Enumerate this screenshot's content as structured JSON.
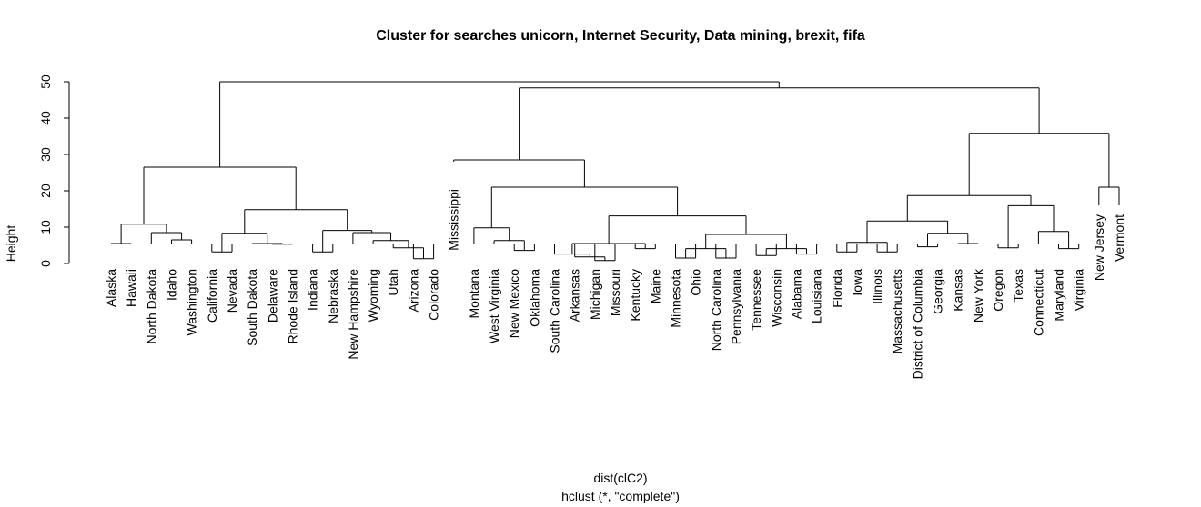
{
  "chart_data": {
    "type": "dendrogram",
    "title": "Cluster for searches unicorn, Internet Security, Data mining, brexit, fifa",
    "ylabel": "Height",
    "xlabel": "dist(clC2)",
    "sublabel": "hclust (*, \"complete\")",
    "ylim": [
      0,
      50
    ],
    "yticks": [
      "0",
      "10",
      "20",
      "30",
      "40",
      "50"
    ],
    "leaves": [
      "Alaska",
      "Hawaii",
      "North Dakota",
      "Idaho",
      "Washington",
      "California",
      "Nevada",
      "South Dakota",
      "Delaware",
      "Rhode Island",
      "Indiana",
      "Nebraska",
      "New Hampshire",
      "Wyoming",
      "Utah",
      "Arizona",
      "Colorado",
      "Mississippi",
      "Montana",
      "West Virginia",
      "New Mexico",
      "Oklahoma",
      "South Carolina",
      "Arkansas",
      "Michigan",
      "Missouri",
      "Kentucky",
      "Maine",
      "Minnesota",
      "Ohio",
      "North Carolina",
      "Pennsylvania",
      "Tennessee",
      "Wisconsin",
      "Alabama",
      "Louisiana",
      "Florida",
      "Iowa",
      "Illinois",
      "Massachusetts",
      "District of Columbia",
      "Georgia",
      "Kansas",
      "New York",
      "Oregon",
      "Texas",
      "Connecticut",
      "Maryland",
      "Virginia",
      "New Jersey",
      "Vermont"
    ],
    "merges": [
      [
        "Alaska",
        "Hawaii",
        5.5
      ],
      [
        "Idaho",
        "Washington",
        6.5
      ],
      [
        "North Dakota",
        2,
        8.5
      ],
      [
        1,
        3,
        10.8
      ],
      [
        "California",
        "Nevada",
        3.2
      ],
      [
        "Delaware",
        "Rhode Island",
        5.3
      ],
      [
        "South Dakota",
        6,
        5.5
      ],
      [
        5,
        7,
        8.3
      ],
      [
        "Arizona",
        "Colorado",
        1.3
      ],
      [
        "Utah",
        9,
        4.3
      ],
      [
        "Wyoming",
        10,
        6.3
      ],
      [
        "New Hampshire",
        11,
        8.5
      ],
      [
        "Nebraska",
        12,
        9.1
      ],
      [
        "Indiana",
        13,
        3.2
      ],
      [
        14,
        "Indiana",
        3.2
      ],
      [
        8,
        13,
        14.8
      ],
      [
        4,
        16,
        26.5
      ],
      [
        "New Mexico",
        "Oklahoma",
        3.6
      ],
      [
        "West Virginia",
        18,
        6.3
      ],
      [
        "Montana",
        19,
        9.8
      ],
      [
        "Michigan",
        "Missouri",
        0.8
      ],
      [
        "Arkansas",
        21,
        1.8
      ],
      [
        "South Carolina",
        22,
        2.6
      ],
      [
        "Kentucky",
        "Maine",
        4.1
      ],
      [
        23,
        24,
        5.5
      ],
      [
        "Minnesota",
        "Ohio",
        1.5
      ],
      [
        "North Carolina",
        "Pennsylvania",
        1.5
      ],
      [
        26,
        27,
        4.1
      ],
      [
        "Tennessee",
        "Wisconsin",
        2.2
      ],
      [
        "Alabama",
        "Louisiana",
        2.6
      ],
      [
        29,
        30,
        4.1
      ],
      [
        28,
        31,
        8.0
      ],
      [
        25,
        32,
        13.1
      ],
      [
        20,
        33,
        21.0
      ],
      [
        "Mississippi",
        34,
        28.5
      ],
      [
        "Florida",
        "Iowa",
        3.2
      ],
      [
        "Illinois",
        "Massachusetts",
        3.2
      ],
      [
        36,
        37,
        5.8
      ],
      [
        "Georgia",
        "Kansas",
        5.5
      ],
      [
        "District of Columbia",
        39,
        4.6
      ],
      [
        40,
        "District of Columbia",
        4.6
      ],
      [
        "New York",
        39,
        8.3
      ],
      [
        38,
        42,
        11.7
      ],
      [
        "Oregon",
        "Texas",
        4.3
      ],
      [
        "Maryland",
        "Virginia",
        4.1
      ],
      [
        "Connecticut",
        45,
        8.8
      ],
      [
        44,
        46,
        15.9
      ],
      [
        43,
        47,
        18.7
      ],
      [
        "New Jersey",
        "Vermont",
        21.0
      ],
      [
        48,
        49,
        35.8
      ],
      [
        35,
        50,
        48.3
      ],
      [
        17,
        51,
        50.0
      ]
    ]
  }
}
